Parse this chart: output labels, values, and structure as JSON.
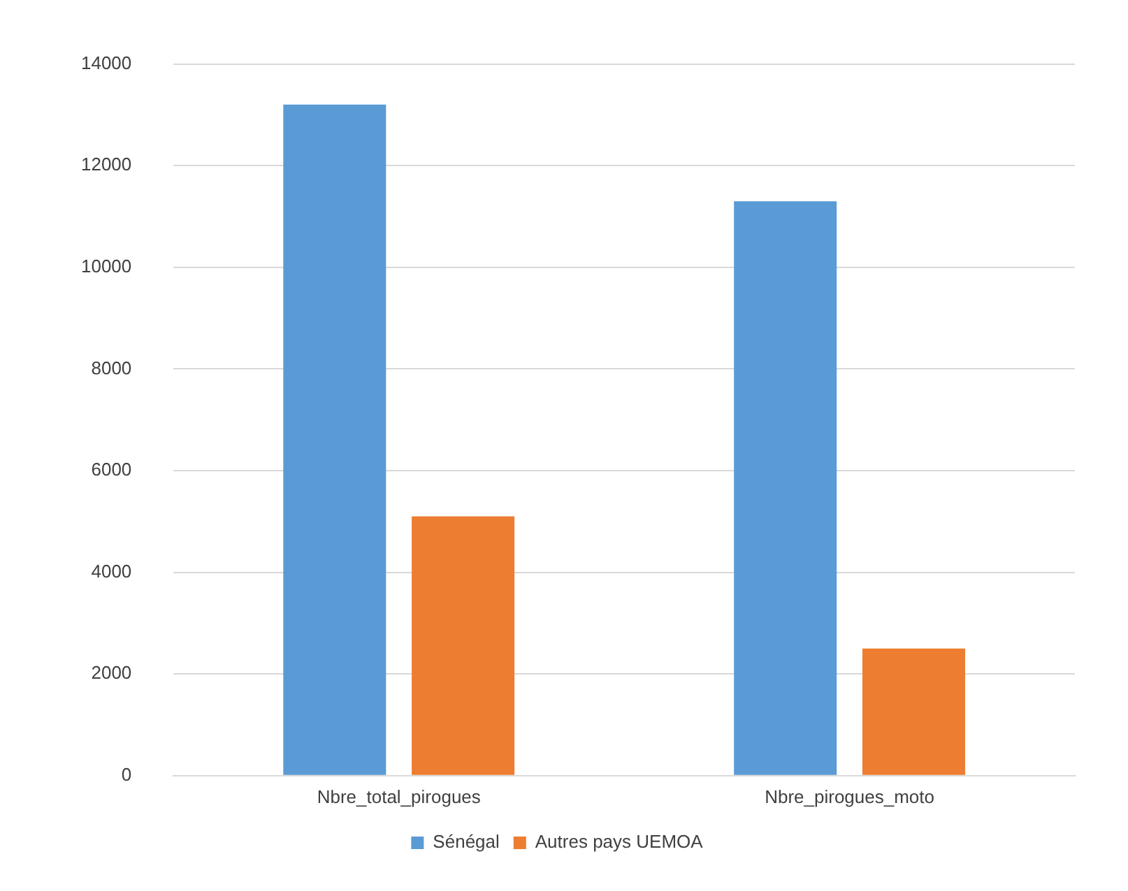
{
  "chart_data": {
    "type": "bar",
    "categories": [
      "Nbre_total_pirogues",
      "Nbre_pirogues_moto"
    ],
    "series": [
      {
        "name": "Sénégal",
        "color": "#5b9bd5",
        "values": [
          13200,
          11300
        ]
      },
      {
        "name": "Autres pays UEMOA",
        "color": "#ed7d31",
        "values": [
          5100,
          2500
        ]
      }
    ],
    "ylim": [
      0,
      14000
    ],
    "yticks": [
      0,
      2000,
      4000,
      6000,
      8000,
      10000,
      12000,
      14000
    ],
    "grid": "y",
    "legend": "bottom"
  }
}
